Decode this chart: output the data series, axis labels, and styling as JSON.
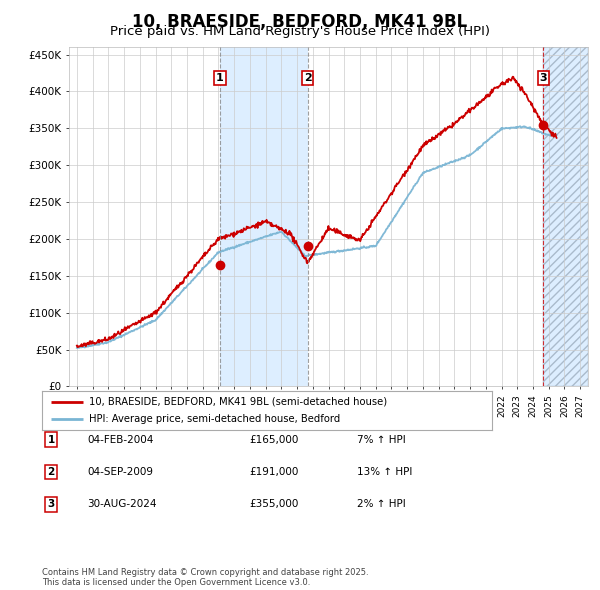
{
  "title": "10, BRAESIDE, BEDFORD, MK41 9BL",
  "subtitle": "Price paid vs. HM Land Registry's House Price Index (HPI)",
  "title_fontsize": 12,
  "subtitle_fontsize": 9.5,
  "ylabel_ticks": [
    "£0",
    "£50K",
    "£100K",
    "£150K",
    "£200K",
    "£250K",
    "£300K",
    "£350K",
    "£400K",
    "£450K"
  ],
  "ylabel_values": [
    0,
    50000,
    100000,
    150000,
    200000,
    250000,
    300000,
    350000,
    400000,
    450000
  ],
  "ylim": [
    0,
    460000
  ],
  "xlim_start": 1994.5,
  "xlim_end": 2027.5,
  "red_line_color": "#cc0000",
  "blue_line_color": "#7ab5d4",
  "marker_color": "#cc0000",
  "grid_color": "#cccccc",
  "bg_color": "#ffffff",
  "purchase1_date_x": 2004.09,
  "purchase1_y": 165000,
  "purchase2_date_x": 2009.67,
  "purchase2_y": 191000,
  "purchase3_date_x": 2024.66,
  "purchase3_y": 355000,
  "shade_start": 2004.09,
  "shade_end": 2009.67,
  "shade_color": "#ddeeff",
  "vline12_color": "#888888",
  "vline3_color": "#cc0000",
  "legend_label1": "10, BRAESIDE, BEDFORD, MK41 9BL (semi-detached house)",
  "legend_label2": "HPI: Average price, semi-detached house, Bedford",
  "transaction1_label": "04-FEB-2004",
  "transaction1_price": "£165,000",
  "transaction1_hpi": "7% ↑ HPI",
  "transaction2_label": "04-SEP-2009",
  "transaction2_price": "£191,000",
  "transaction2_hpi": "13% ↑ HPI",
  "transaction3_label": "30-AUG-2024",
  "transaction3_price": "£355,000",
  "transaction3_hpi": "2% ↑ HPI",
  "footer_text": "Contains HM Land Registry data © Crown copyright and database right 2025.\nThis data is licensed under the Open Government Licence v3.0.",
  "hatch_color": "#aabbcc"
}
